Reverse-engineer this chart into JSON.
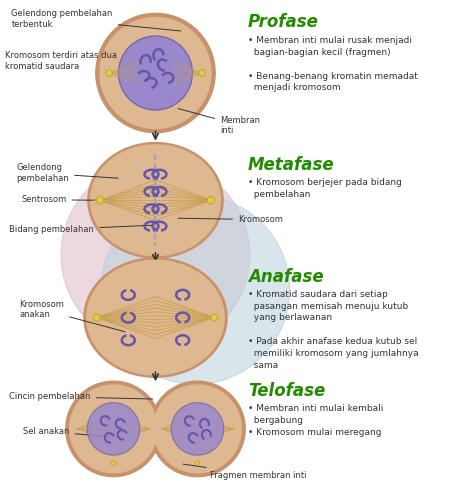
{
  "bg_color": "#ffffff",
  "title_color": "#228B00",
  "label_color": "#333333",
  "cell_outer": "#c8916a",
  "cell_inner": "#deb890",
  "spindle_color": "#c8a050",
  "chrom_color": "#6655aa",
  "nuc_fill": "#9988cc",
  "nuc_edge": "#7766aa",
  "cen_color": "#ddcc44",
  "pink_bg": "#e0c0cc",
  "blue_bg": "#b8d0dc",
  "arrow_color": "#333333",
  "stage_titles": [
    "Profase",
    "Metafase",
    "Anafase",
    "Telofase"
  ],
  "profase_text": "• Membran inti mulai rusak menjadi\n  bagian-bagian kecil (fragmen)\n\n• Benang-benang kromatin memadat\n  menjadi kromosom",
  "metafase_text": "• Kromosom berjejer pada bidang\n  pembelahan",
  "anafase_text": "• Kromatid saudara dari setiap\n  pasangan memisah menuju kutub\n  yang berlawanan\n\n• Pada akhir anafase kedua kutub sel\n  memiliki kromosom yang jumlahnya\n  sama",
  "telofase_text": "• Membran inti mulai kembali\n  bergabung\n• Kromosom mulai meregang"
}
